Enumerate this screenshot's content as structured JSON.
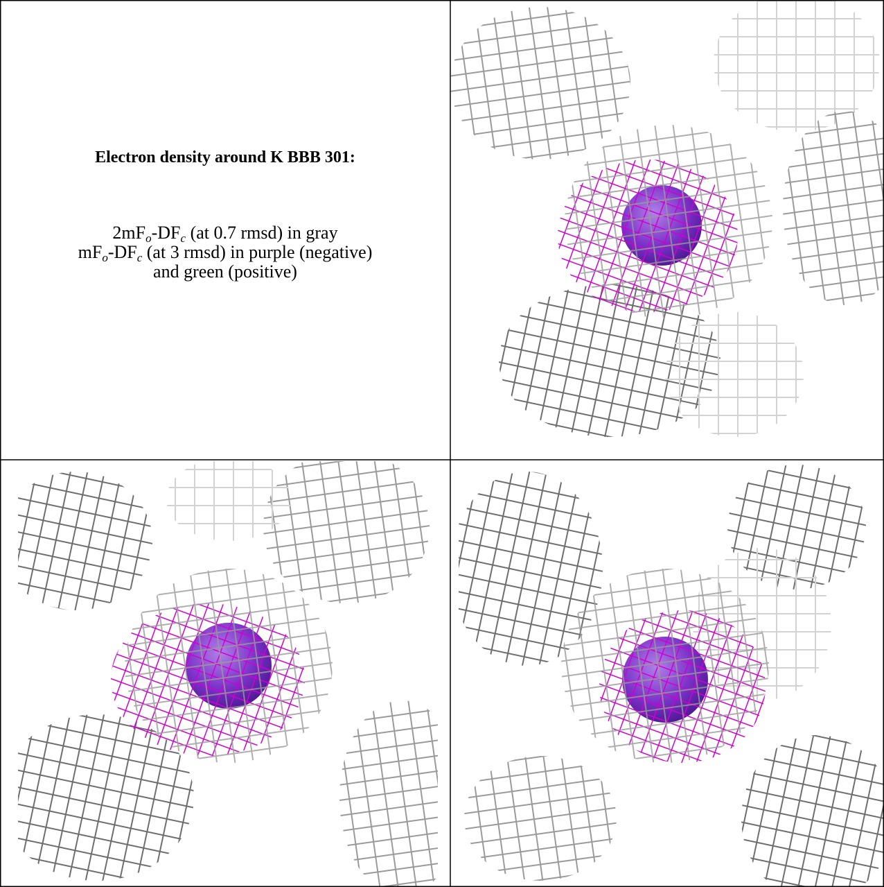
{
  "title": "Electron density around K BBB 301:",
  "caption": [
    [
      {
        "text": "2mF"
      },
      {
        "text": "o",
        "sub": true
      },
      {
        "text": "-DF"
      },
      {
        "text": "c",
        "sub": true
      },
      {
        "text": " (at 0.7 rmsd) in gray"
      }
    ],
    [
      {
        "text": "mF"
      },
      {
        "text": "o",
        "sub": true
      },
      {
        "text": "-DF"
      },
      {
        "text": "c",
        "sub": true
      },
      {
        "text": " (at 3 rmsd) in purple (negative)"
      }
    ],
    [
      {
        "text": "and green (positive)"
      }
    ]
  ]
}
